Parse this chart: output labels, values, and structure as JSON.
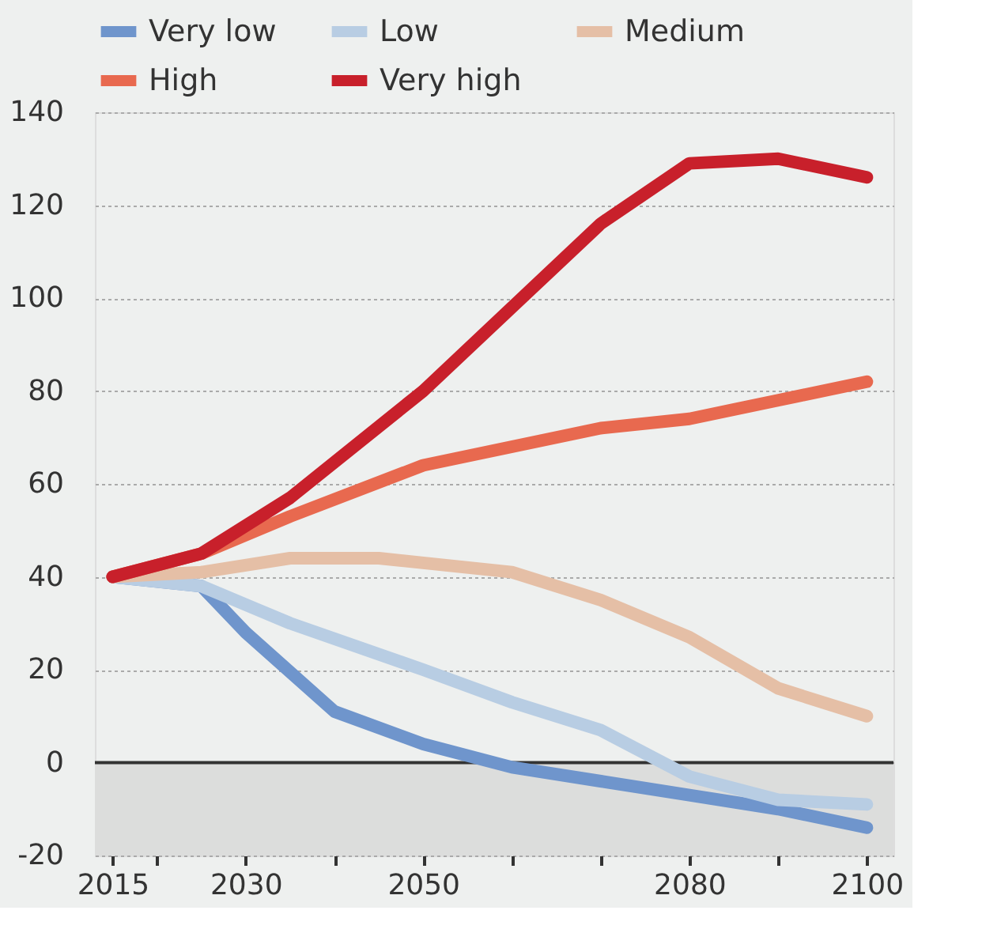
{
  "chart_data": {
    "type": "line",
    "x": [
      2015,
      2025,
      2035,
      2050,
      2060,
      2070,
      2080,
      2090,
      2100
    ],
    "series": [
      {
        "name": "Very low",
        "color": "#6f95cc",
        "x": [
          2015,
          2025,
          2030,
          2040,
          2050,
          2060,
          2070,
          2080,
          2090,
          2100
        ],
        "values": [
          40,
          38,
          28,
          11,
          4,
          -1,
          -4,
          -7,
          -10,
          -14
        ]
      },
      {
        "name": "Low",
        "color": "#b8cde3",
        "x": [
          2015,
          2025,
          2035,
          2050,
          2060,
          2070,
          2080,
          2090,
          2100
        ],
        "values": [
          40,
          38,
          30,
          20,
          13,
          7,
          -3,
          -8,
          -9
        ]
      },
      {
        "name": "Medium",
        "color": "#e5bfa6",
        "x": [
          2015,
          2025,
          2035,
          2045,
          2050,
          2060,
          2070,
          2080,
          2090,
          2100
        ],
        "values": [
          40,
          41,
          44,
          44,
          43,
          41,
          35,
          27,
          16,
          10
        ]
      },
      {
        "name": "High",
        "color": "#e8694f",
        "values": [
          40,
          45,
          53,
          64,
          68,
          72,
          74,
          78,
          82
        ]
      },
      {
        "name": "Very high",
        "color": "#c8202b",
        "values": [
          40,
          45,
          57,
          80,
          98,
          116,
          129,
          130,
          126
        ]
      }
    ],
    "xlim": [
      2013,
      2103
    ],
    "xticks": [
      2015,
      {
        "value": 2020,
        "label": null
      },
      2030,
      {
        "value": 2040,
        "label": null
      },
      2050,
      {
        "value": 2060,
        "label": null
      },
      {
        "value": 2070,
        "label": null
      },
      2080,
      {
        "value": 2090,
        "label": null
      },
      2100
    ],
    "ylim": [
      -20,
      140
    ],
    "yticks": [
      -20,
      0,
      20,
      40,
      60,
      80,
      100,
      120,
      140
    ],
    "bands": [
      {
        "axis": "y",
        "from": -20,
        "to": 0,
        "color": "#dcdddc"
      }
    ],
    "ref_lines": [
      {
        "axis": "y",
        "value": 0,
        "color": "#333333"
      }
    ],
    "grid": "y",
    "legend": "top left",
    "marker": "none",
    "line_style": "solid"
  }
}
